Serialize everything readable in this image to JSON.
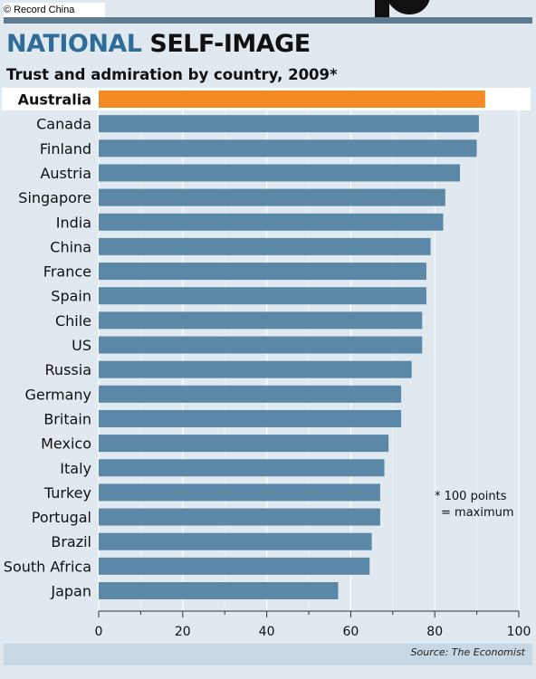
{
  "watermark": {
    "copyright_symbol": "©",
    "text": "Record China"
  },
  "title": {
    "part1": "NATIONAL",
    "part2": "SELF-IMAGE"
  },
  "subtitle": "Trust and admiration by country, 2009*",
  "footnote": {
    "line1": "* 100 points",
    "line2": "= maximum"
  },
  "source": "Source: The Economist",
  "colors": {
    "highlight": "#f28b23",
    "bar": "#5c88a8",
    "background": "#dfe9ef",
    "title_accent": "#2f6d99",
    "top_bar": "#5e7b91"
  },
  "chart_data": {
    "type": "bar",
    "orientation": "horizontal",
    "title": "NATIONAL SELF-IMAGE",
    "subtitle": "Trust and admiration by country, 2009*",
    "categories": [
      "Australia",
      "Canada",
      "Finland",
      "Austria",
      "Singapore",
      "India",
      "China",
      "France",
      "Spain",
      "Chile",
      "US",
      "Russia",
      "Germany",
      "Britain",
      "Mexico",
      "Italy",
      "Turkey",
      "Portugal",
      "Brazil",
      "South Africa",
      "Japan"
    ],
    "values": [
      92,
      90.5,
      90,
      86,
      82.5,
      82,
      79,
      78,
      78,
      77,
      77,
      74.5,
      72,
      72,
      69,
      68,
      67,
      67,
      65,
      64.5,
      57
    ],
    "highlight": "Australia",
    "xlim": [
      0,
      100
    ],
    "xticks": [
      0,
      20,
      40,
      60,
      80,
      100
    ],
    "grid": true,
    "source": "Source: The Economist"
  }
}
